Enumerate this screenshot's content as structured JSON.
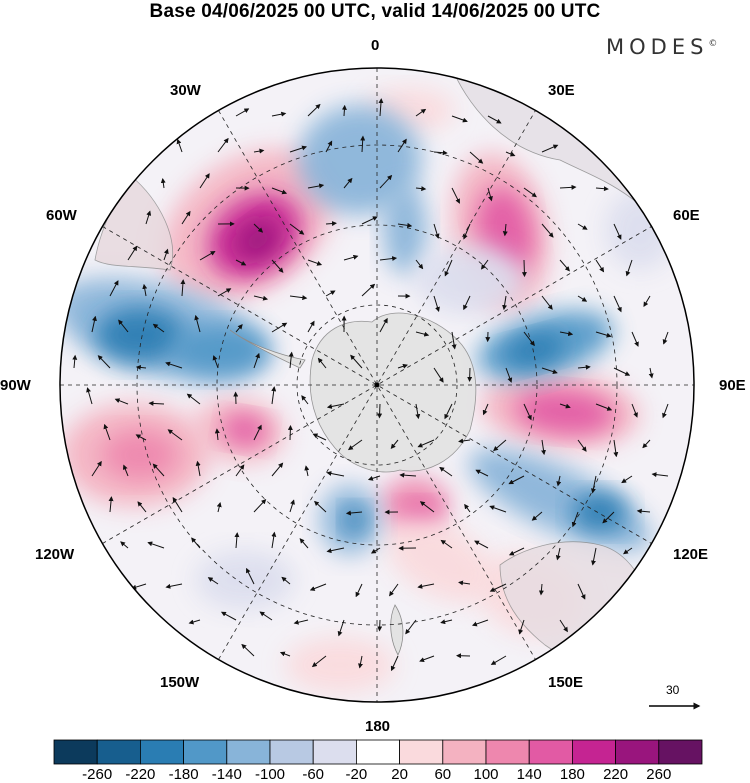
{
  "header": {
    "title": "Base 04/06/2025 00 UTC, valid 14/06/2025 00 UTC",
    "brand": "MODES",
    "brand_mark": "©"
  },
  "map": {
    "projection": "south-polar-stereographic",
    "longitude_labels": {
      "lon_0": "0",
      "lon_30e": "30E",
      "lon_60e": "60E",
      "lon_90e": "90E",
      "lon_120e": "120E",
      "lon_150e": "150E",
      "lon_180": "180",
      "lon_150w": "150W",
      "lon_120w": "120W",
      "lon_90w": "90W",
      "lon_60w": "60W",
      "lon_30w": "30W"
    },
    "reference_vector_value": "30",
    "colors": {
      "land": "#e3e3e3",
      "graticule": "#222222",
      "vector": "#111111"
    }
  },
  "colorbar": {
    "ticks": [
      "-260",
      "-220",
      "-180",
      "-140",
      "-100",
      "-60",
      "-20",
      "20",
      "60",
      "100",
      "140",
      "180",
      "220",
      "260"
    ],
    "colors": [
      "#0c3a5c",
      "#175e8e",
      "#2a7db3",
      "#5198c8",
      "#88b4d9",
      "#b8c9e3",
      "#dcdeee",
      "#ffffff",
      "#fadadd",
      "#f4b2c1",
      "#ee87ae",
      "#e25aa4",
      "#c52492",
      "#99157d",
      "#661262"
    ]
  }
}
